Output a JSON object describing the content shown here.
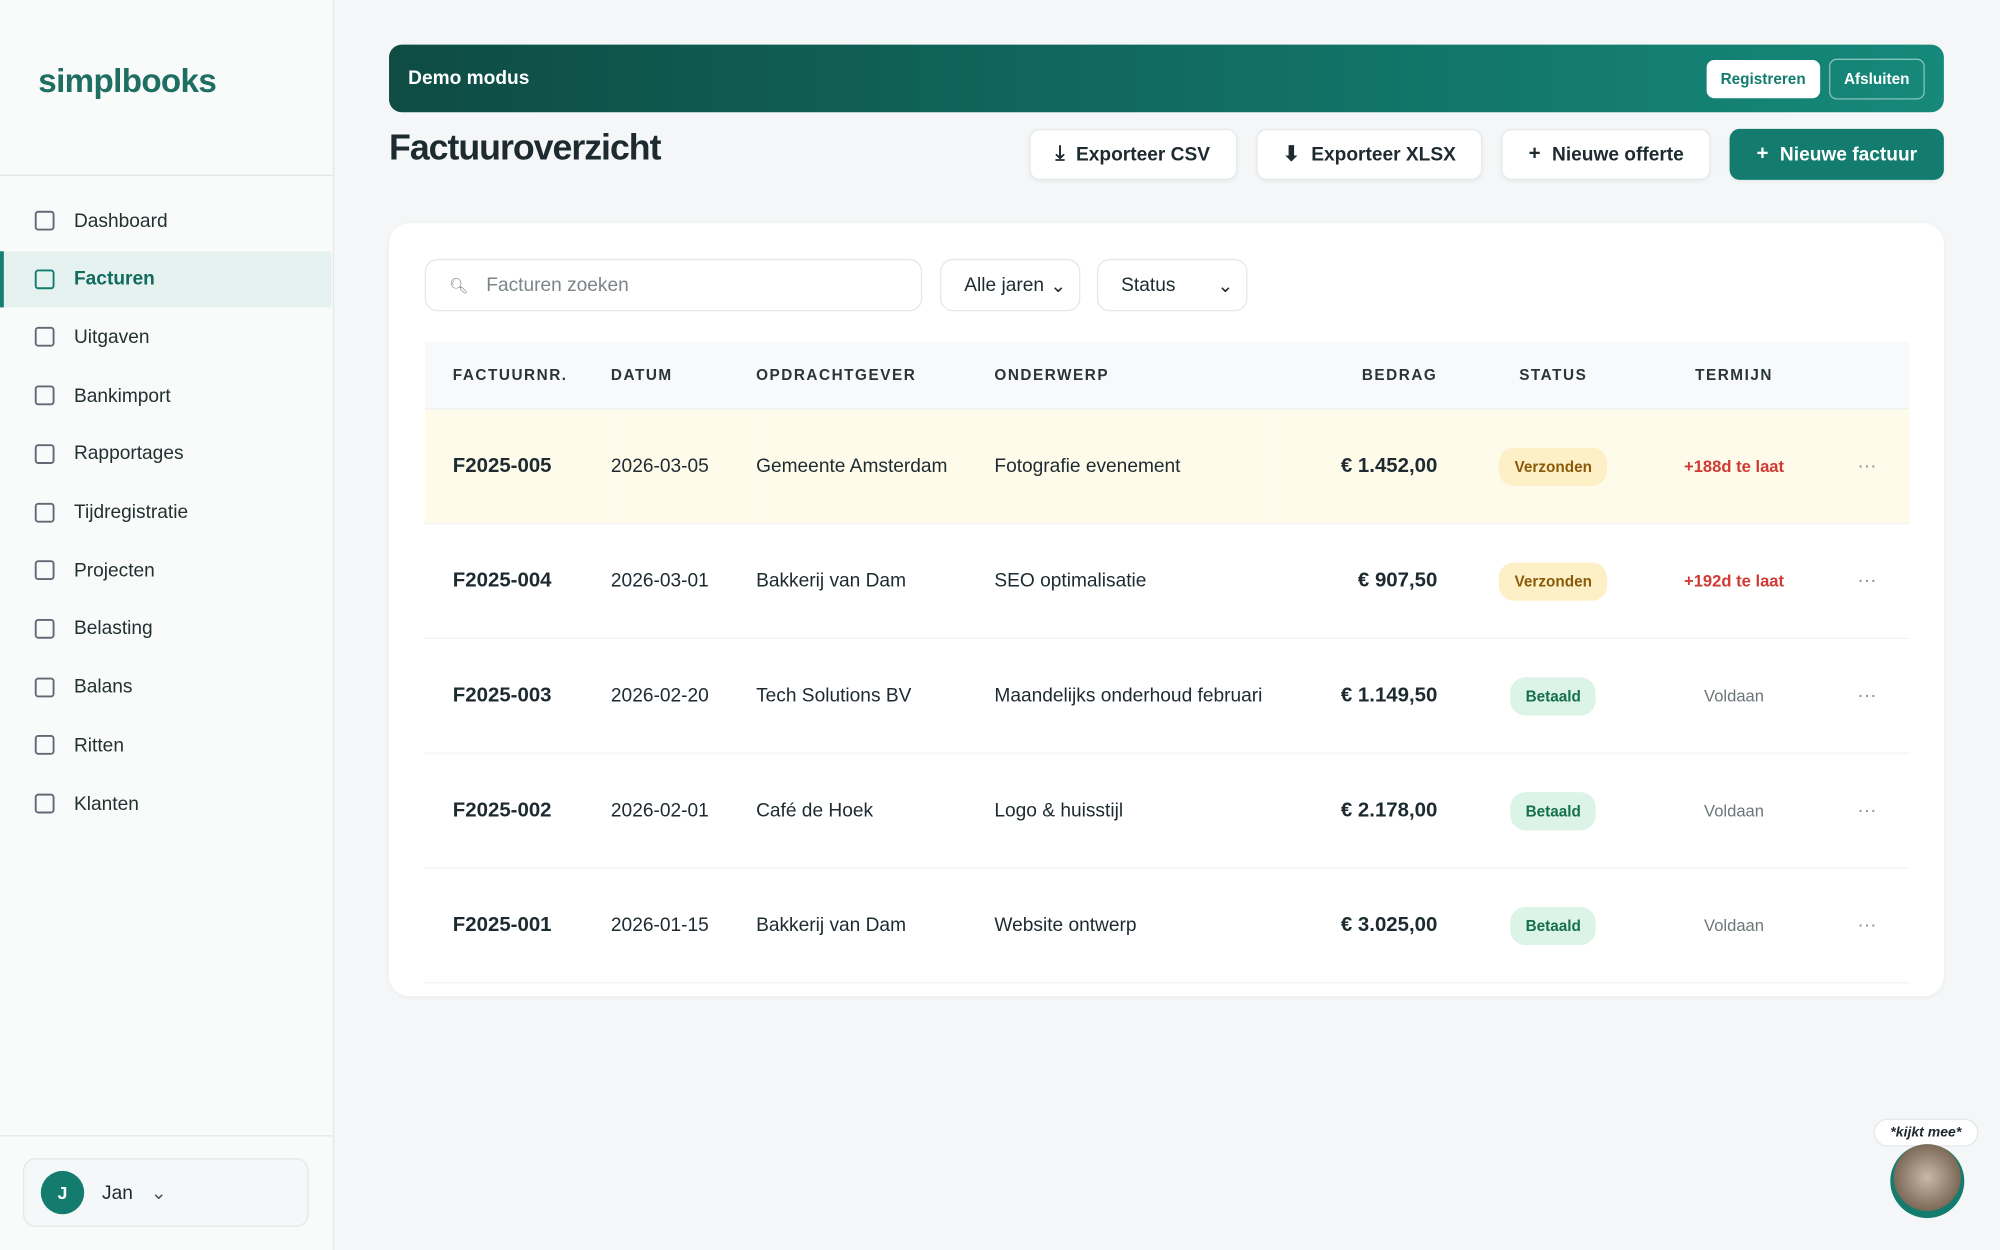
{
  "sidebar": {
    "brand": "simplbooks",
    "nav": [
      "Dashboard",
      "Facturen",
      "Uitgaven",
      "Bankimport",
      "Rapportages",
      "Tijdregistratie",
      "Projecten",
      "Belasting",
      "Balans",
      "Ritten",
      "Klanten"
    ],
    "user": {
      "initial": "J",
      "name": "Jan"
    }
  },
  "banner": {
    "text": "Demo modus",
    "buttons": [
      "Registreren",
      "Afsluiten"
    ]
  },
  "header": {
    "title": "Factuuroverzicht",
    "buttons": [
      "Exporteer CSV",
      "Exporteer XLSX",
      "Nieuwe offerte",
      "Nieuwe factuur"
    ]
  },
  "filters": {
    "search_placeholder": "Facturen zoeken",
    "year": "Alle jaren",
    "status": "Status"
  },
  "table": {
    "columns": [
      "FACTUURNR.",
      "DATUM",
      "OPDRACHTGEVER",
      "ONDERWERP",
      "BEDRAG",
      "STATUS",
      "TERMIJN"
    ],
    "rows": [
      [
        "F2025-005",
        "2026-03-05",
        "Gemeente Amsterdam",
        "Fotografie evenement",
        "€ 1.452,00",
        "Verzonden",
        "+188d te laat"
      ],
      [
        "F2025-004",
        "2026-03-01",
        "Bakkerij van Dam",
        "SEO optimalisatie",
        "€ 907,50",
        "Verzonden",
        "+192d te laat"
      ],
      [
        "F2025-003",
        "2026-02-20",
        "Tech Solutions BV",
        "Maandelijks onderhoud februari",
        "€ 1.149,50",
        "Betaald",
        "Voldaan"
      ],
      [
        "F2025-002",
        "2026-02-01",
        "Café de Hoek",
        "Logo & huisstijl",
        "€ 2.178,00",
        "Betaald",
        "Voldaan"
      ],
      [
        "F2025-001",
        "2026-01-15",
        "Bakkerij van Dam",
        "Website ontwerp",
        "€ 3.025,00",
        "Betaald",
        "Voldaan"
      ]
    ]
  },
  "assistant": {
    "bubble": "*kijkt mee*"
  }
}
